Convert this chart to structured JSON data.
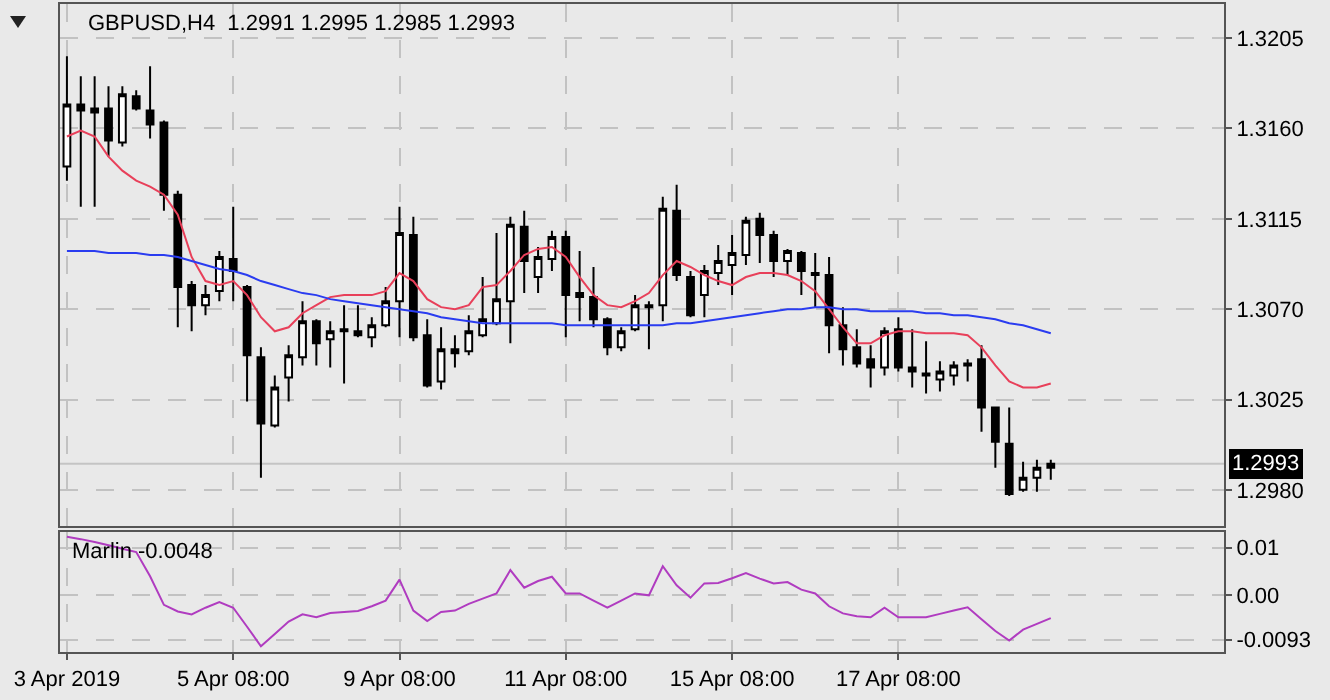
{
  "chart_data": [
    {
      "type": "candlestick",
      "title": "GBPUSD,H4  1.2991 1.2995 1.2985 1.2993",
      "categories": [
        null,
        null,
        null,
        null,
        null,
        null,
        null,
        null,
        null,
        null,
        null,
        null,
        null,
        null,
        null,
        null,
        null,
        null,
        null,
        null,
        null,
        null,
        null,
        null,
        null,
        null,
        null,
        null,
        null,
        null,
        null,
        null,
        null,
        null,
        null,
        null,
        null,
        null,
        null,
        null,
        null,
        null,
        null,
        null,
        null,
        null,
        null,
        null,
        null,
        null,
        null,
        null,
        null,
        null,
        null,
        null,
        null,
        null,
        null,
        null,
        null,
        null,
        null,
        null,
        null,
        null,
        null,
        null,
        null,
        null,
        null,
        null
      ],
      "series": [
        {
          "type": "candlestick",
          "color": "#000000",
          "ohlc": [
            [
              1.3141,
              1.3196,
              1.3134,
              1.3172
            ],
            [
              1.3172,
              1.3186,
              1.3121,
              1.3169
            ],
            [
              1.317,
              1.3186,
              1.3121,
              1.3168
            ],
            [
              1.317,
              1.3181,
              1.3146,
              1.3154
            ],
            [
              1.3153,
              1.3181,
              1.3151,
              1.3177
            ],
            [
              1.3176,
              1.3179,
              1.3169,
              1.317
            ],
            [
              1.3169,
              1.3191,
              1.3155,
              1.3162
            ],
            [
              1.3163,
              1.3164,
              1.3119,
              1.3127
            ],
            [
              1.3127,
              1.3129,
              1.3061,
              1.3081
            ],
            [
              1.3082,
              1.3084,
              1.3059,
              1.3072
            ],
            [
              1.3072,
              1.3082,
              1.3067,
              1.3077
            ],
            [
              1.3079,
              1.3099,
              1.3074,
              1.3096
            ],
            [
              1.3095,
              1.3121,
              1.3074,
              1.3089
            ],
            [
              1.3081,
              1.3082,
              1.3024,
              1.3047
            ],
            [
              1.3046,
              1.3051,
              1.2986,
              1.3013
            ],
            [
              1.3012,
              1.3037,
              1.3011,
              1.3031
            ],
            [
              1.3036,
              1.3052,
              1.3024,
              1.3047
            ],
            [
              1.3046,
              1.3074,
              1.3042,
              1.3064
            ],
            [
              1.3064,
              1.3065,
              1.3042,
              1.3053
            ],
            [
              1.3055,
              1.3064,
              1.3041,
              1.3059
            ],
            [
              1.306,
              1.3072,
              1.3033,
              1.3059
            ],
            [
              1.3059,
              1.3072,
              1.3056,
              1.3057
            ],
            [
              1.3056,
              1.3066,
              1.3051,
              1.3062
            ],
            [
              1.3062,
              1.3081,
              1.3061,
              1.3074
            ],
            [
              1.3074,
              1.3121,
              1.3056,
              1.3108
            ],
            [
              1.3107,
              1.3116,
              1.3054,
              1.3056
            ],
            [
              1.3057,
              1.3065,
              1.3031,
              1.3032
            ],
            [
              1.3034,
              1.3061,
              1.303,
              1.305
            ],
            [
              1.3048,
              1.3057,
              1.3041,
              1.305
            ],
            [
              1.3049,
              1.3067,
              1.3047,
              1.3059
            ],
            [
              1.3057,
              1.3086,
              1.3056,
              1.3065
            ],
            [
              1.3063,
              1.3108,
              1.3062,
              1.3075
            ],
            [
              1.3074,
              1.3116,
              1.3053,
              1.3112
            ],
            [
              1.3111,
              1.3119,
              1.3078,
              1.3094
            ],
            [
              1.3086,
              1.3101,
              1.3078,
              1.3096
            ],
            [
              1.3095,
              1.3109,
              1.3089,
              1.3106
            ],
            [
              1.3106,
              1.3109,
              1.3056,
              1.3077
            ],
            [
              1.3078,
              1.3099,
              1.3064,
              1.3076
            ],
            [
              1.3076,
              1.3091,
              1.3061,
              1.3065
            ],
            [
              1.3065,
              1.3066,
              1.3047,
              1.3051
            ],
            [
              1.3051,
              1.3061,
              1.3049,
              1.3059
            ],
            [
              1.306,
              1.3077,
              1.3059,
              1.3072
            ],
            [
              1.3072,
              1.3074,
              1.305,
              1.3071
            ],
            [
              1.3072,
              1.3126,
              1.3064,
              1.312
            ],
            [
              1.3119,
              1.3132,
              1.3084,
              1.3087
            ],
            [
              1.3086,
              1.3089,
              1.3066,
              1.3067
            ],
            [
              1.3077,
              1.3092,
              1.3066,
              1.3089
            ],
            [
              1.3088,
              1.3102,
              1.3082,
              1.3094
            ],
            [
              1.3092,
              1.3107,
              1.3077,
              1.3098
            ],
            [
              1.3097,
              1.3116,
              1.3092,
              1.3114
            ],
            [
              1.3115,
              1.3118,
              1.3093,
              1.3107
            ],
            [
              1.3107,
              1.3109,
              1.3086,
              1.3094
            ],
            [
              1.3094,
              1.31,
              1.3087,
              1.3099
            ],
            [
              1.3098,
              1.3099,
              1.3077,
              1.3089
            ],
            [
              1.3088,
              1.3098,
              1.3071,
              1.3087
            ],
            [
              1.3087,
              1.3096,
              1.3048,
              1.3062
            ],
            [
              1.3062,
              1.3071,
              1.3042,
              1.305
            ],
            [
              1.3051,
              1.306,
              1.3041,
              1.3043
            ],
            [
              1.3045,
              1.3052,
              1.3031,
              1.3041
            ],
            [
              1.3041,
              1.3061,
              1.3037,
              1.3059
            ],
            [
              1.306,
              1.3066,
              1.3039,
              1.3041
            ],
            [
              1.3041,
              1.306,
              1.3031,
              1.3039
            ],
            [
              1.3038,
              1.3054,
              1.3028,
              1.3037
            ],
            [
              1.3035,
              1.3044,
              1.3029,
              1.3039
            ],
            [
              1.3037,
              1.3044,
              1.3032,
              1.3042
            ],
            [
              1.3043,
              1.3045,
              1.3034,
              1.3042
            ],
            [
              1.3045,
              1.3052,
              1.3009,
              1.3021
            ],
            [
              1.3021,
              1.3021,
              1.2991,
              1.3004
            ],
            [
              1.3003,
              1.3021,
              1.2977,
              1.2978
            ],
            [
              1.298,
              1.2994,
              1.2979,
              1.2986
            ],
            [
              1.2986,
              1.2995,
              1.2979,
              1.2991
            ],
            [
              1.2991,
              1.2995,
              1.2985,
              1.2993
            ]
          ]
        },
        {
          "type": "line",
          "color": "#e8405a",
          "values": [
            1.3156,
            1.3159,
            1.3156,
            1.3146,
            1.3139,
            1.3134,
            1.3131,
            1.3127,
            1.3117,
            1.3096,
            1.3084,
            1.3082,
            1.3084,
            1.3077,
            1.3066,
            1.3059,
            1.3061,
            1.3068,
            1.3072,
            1.3076,
            1.3077,
            1.3077,
            1.3077,
            1.3079,
            1.3088,
            1.3084,
            1.3075,
            1.3071,
            1.307,
            1.3072,
            1.3081,
            1.3082,
            1.3089,
            1.3097,
            1.31,
            1.3101,
            1.3096,
            1.3086,
            1.3077,
            1.3072,
            1.3071,
            1.3074,
            1.3078,
            1.3087,
            1.3094,
            1.3091,
            1.3087,
            1.3084,
            1.3082,
            1.3086,
            1.3088,
            1.3088,
            1.3087,
            1.3084,
            1.3079,
            1.307,
            1.3061,
            1.3053,
            1.3053,
            1.3057,
            1.3059,
            1.3059,
            1.3058,
            1.3058,
            1.3058,
            1.3057,
            1.3051,
            1.3042,
            1.3034,
            1.3031,
            1.3031,
            1.3033
          ]
        },
        {
          "type": "line",
          "color": "#2a3cf0",
          "values": [
            1.3099,
            1.3099,
            1.3099,
            1.3098,
            1.3098,
            1.3098,
            1.3097,
            1.3097,
            1.3096,
            1.3094,
            1.3092,
            1.309,
            1.3089,
            1.3087,
            1.3084,
            1.3082,
            1.308,
            1.3078,
            1.3077,
            1.3075,
            1.3074,
            1.3073,
            1.3072,
            1.3071,
            1.307,
            1.3069,
            1.3068,
            1.3066,
            1.3065,
            1.3064,
            1.3063,
            1.3063,
            1.3063,
            1.3063,
            1.3063,
            1.3063,
            1.3062,
            1.3062,
            1.3062,
            1.3062,
            1.3062,
            1.3062,
            1.3062,
            1.3062,
            1.3063,
            1.3063,
            1.3064,
            1.3065,
            1.3066,
            1.3067,
            1.3068,
            1.3069,
            1.307,
            1.307,
            1.3071,
            1.3071,
            1.307,
            1.307,
            1.3069,
            1.3069,
            1.3069,
            1.3069,
            1.3068,
            1.3068,
            1.3067,
            1.3067,
            1.3066,
            1.3065,
            1.3063,
            1.3062,
            1.306,
            1.3058
          ]
        }
      ],
      "ylim": [
        1.2962,
        1.3222
      ],
      "yticks": [
        1.3205,
        {
          "value": 1.316,
          "label": "1.3160"
        },
        1.3115,
        {
          "value": 1.307,
          "label": "1.3070"
        },
        1.3025,
        {
          "value": 1.298,
          "label": "1.2980"
        }
      ],
      "ref_lines": [
        {
          "axis": "y",
          "value": 1.2993,
          "label": "1.2993",
          "color": "#c4c4c4"
        }
      ],
      "grid": true,
      "tick_labels": "y"
    },
    {
      "type": "line",
      "title": "Marlin -0.0048",
      "categories": [
        "3 Apr 2019",
        null,
        null,
        null,
        null,
        null,
        null,
        null,
        null,
        null,
        null,
        null,
        "5 Apr 08:00",
        null,
        null,
        null,
        null,
        null,
        null,
        null,
        null,
        null,
        null,
        null,
        "9 Apr 08:00",
        null,
        null,
        null,
        null,
        null,
        null,
        null,
        null,
        null,
        null,
        null,
        "11 Apr 08:00",
        null,
        null,
        null,
        null,
        null,
        null,
        null,
        null,
        null,
        null,
        null,
        "15 Apr 08:00",
        null,
        null,
        null,
        null,
        null,
        null,
        null,
        null,
        null,
        null,
        null,
        "17 Apr 08:00",
        null,
        null,
        null,
        null,
        null,
        null,
        null,
        null,
        null,
        null,
        null
      ],
      "series": [
        {
          "color": "#b03cc0",
          "values": [
            0.0123,
            0.0118,
            0.0112,
            0.0105,
            0.0098,
            0.0091,
            0.004,
            -0.002,
            -0.0034,
            -0.004,
            -0.0026,
            -0.0014,
            -0.0026,
            -0.0066,
            -0.0107,
            -0.0081,
            -0.0055,
            -0.004,
            -0.0046,
            -0.0037,
            -0.0035,
            -0.0033,
            -0.0023,
            -0.0011,
            0.0033,
            -0.0032,
            -0.0054,
            -0.0035,
            -0.0032,
            -0.0018,
            -0.0007,
            0.0004,
            0.0053,
            0.0016,
            0.003,
            0.0039,
            0.0004,
            0.0004,
            -0.0011,
            -0.0026,
            -0.0011,
            0.0004,
            0.0,
            0.0061,
            0.0021,
            -0.0005,
            0.0025,
            0.0026,
            0.0036,
            0.0047,
            0.0035,
            0.0025,
            0.0028,
            0.0012,
            0.0004,
            -0.0023,
            -0.0038,
            -0.0044,
            -0.0046,
            -0.0026,
            -0.0046,
            -0.0046,
            -0.0046,
            -0.0039,
            -0.0032,
            -0.0025,
            -0.005,
            -0.0075,
            -0.0095,
            -0.0072,
            -0.006,
            -0.0048
          ]
        }
      ],
      "ylim": [
        -0.0119,
        0.0133
      ],
      "yticks": [
        0.01,
        {
          "value": 0,
          "label": "0.00"
        },
        -0.0093
      ],
      "grid": true
    }
  ]
}
